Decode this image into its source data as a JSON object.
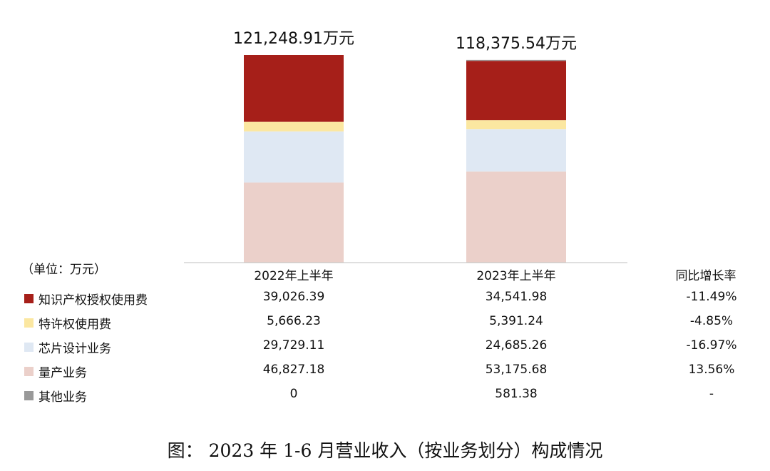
{
  "chart_data": {
    "type": "bar",
    "stacked": true,
    "categories": [
      "2022年上半年",
      "2023年上半年"
    ],
    "totals": [
      "121,248.91万元",
      "118,375.54万元"
    ],
    "series": [
      {
        "name": "量产业务",
        "color": "#ebd0ca",
        "values": [
          46827.18,
          53175.68
        ],
        "display": [
          "46,827.18",
          "53,175.68"
        ],
        "growth": "13.56%"
      },
      {
        "name": "芯片设计业务",
        "color": "#dfe8f3",
        "values": [
          29729.11,
          24685.26
        ],
        "display": [
          "29,729.11",
          "24,685.26"
        ],
        "growth": "-16.97%"
      },
      {
        "name": "特许权使用费",
        "color": "#fbe7a1",
        "values": [
          5666.23,
          5391.24
        ],
        "display": [
          "5,666.23",
          "5,391.24"
        ],
        "growth": "-4.85%"
      },
      {
        "name": "知识产权授权使用费",
        "color": "#a61f19",
        "values": [
          39026.39,
          34541.98
        ],
        "display": [
          "39,026.39",
          "34,541.98"
        ],
        "growth": "-11.49%"
      },
      {
        "name": "其他业务",
        "color": "#999999",
        "values": [
          0,
          581.38
        ],
        "display": [
          "0",
          "581.38"
        ],
        "growth": "-"
      }
    ],
    "unit_note": "（单位：万元）",
    "growth_header": "同比增长率",
    "legend_order": [
      "知识产权授权使用费",
      "特许权使用费",
      "芯片设计业务",
      "量产业务",
      "其他业务"
    ]
  },
  "caption": "图：   2023 年 1-6 月营业收入（按业务划分）构成情况"
}
